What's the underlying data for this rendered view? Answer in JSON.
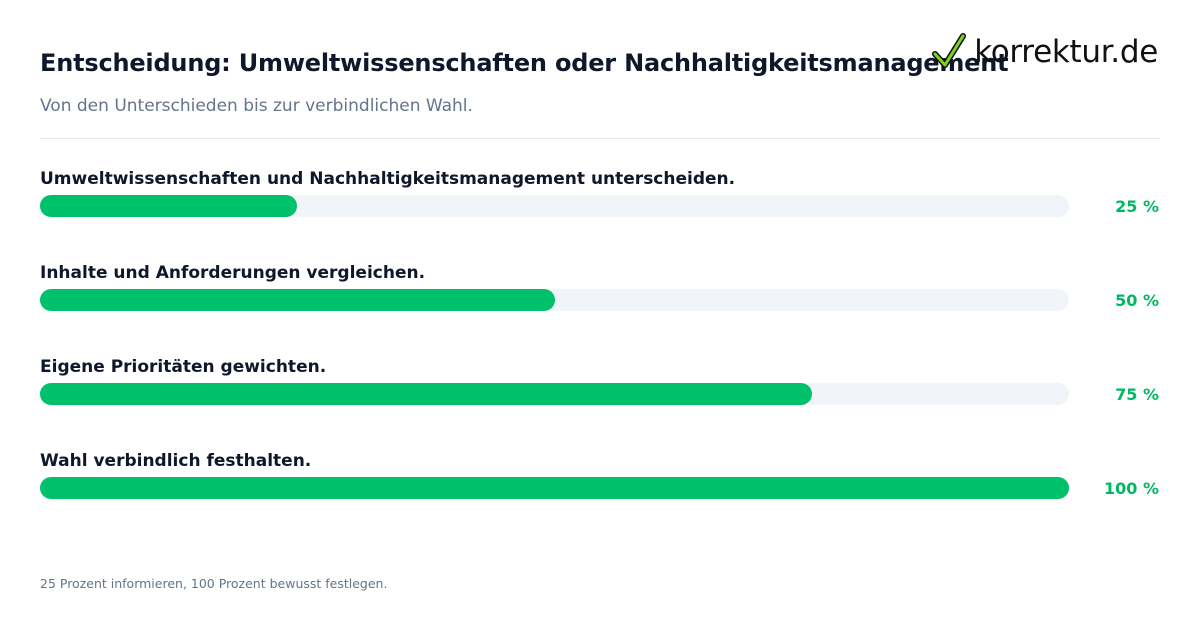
{
  "header": {
    "title": "Entscheidung: Umweltwissenschaften oder Nachhaltigkeitsmanagement",
    "subtitle": "Von den Unterschieden bis zur verbindlichen Wahl.",
    "logo_text": "korrektur.de",
    "logo_icon": "checkmark-icon"
  },
  "colors": {
    "accent": "#00c16b",
    "track": "#f1f5f9",
    "percent_text": "#00b863"
  },
  "chart_data": {
    "type": "bar",
    "orientation": "horizontal",
    "categories": [
      "Umweltwissenschaften und Nachhaltigkeitsmanagement unterscheiden.",
      "Inhalte und Anforderungen vergleichen.",
      "Eigene Prioritäten gewichten.",
      "Wahl verbindlich festhalten."
    ],
    "values": [
      25,
      50,
      75,
      100
    ],
    "value_labels": [
      "25 %",
      "50 %",
      "75 %",
      "100 %"
    ],
    "xlim": [
      0,
      100
    ],
    "title": "Entscheidung: Umweltwissenschaften oder Nachhaltigkeitsmanagement",
    "subtitle": "Von den Unterschieden bis zur verbindlichen Wahl.",
    "grid": false,
    "legend": "none"
  },
  "footer": {
    "note": "25 Prozent informieren, 100 Prozent bewusst festlegen."
  }
}
